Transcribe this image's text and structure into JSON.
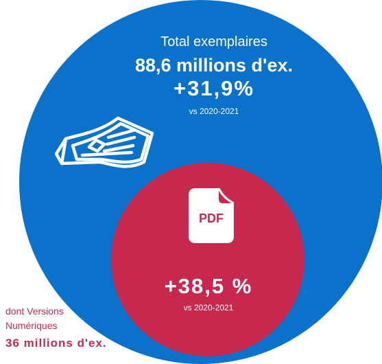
{
  "total": {
    "label": "Total exemplaires",
    "value": "88,6 millions d'ex.",
    "change": "+31,9%",
    "vs": "vs 2020-2021"
  },
  "digital": {
    "change": "+38,5 %",
    "vs": "vs 2020-2021",
    "pdf_text": "PDF",
    "label_line1": "dont Versions",
    "label_line2": "Numériques",
    "value": "36 millions d'ex."
  },
  "icons": {
    "print": "newspaper-icon",
    "digital": "pdf-file-icon"
  },
  "colors": {
    "total_circle": "#0b72cc",
    "digital_circle": "#c9284e",
    "digital_text": "#c9284e"
  }
}
